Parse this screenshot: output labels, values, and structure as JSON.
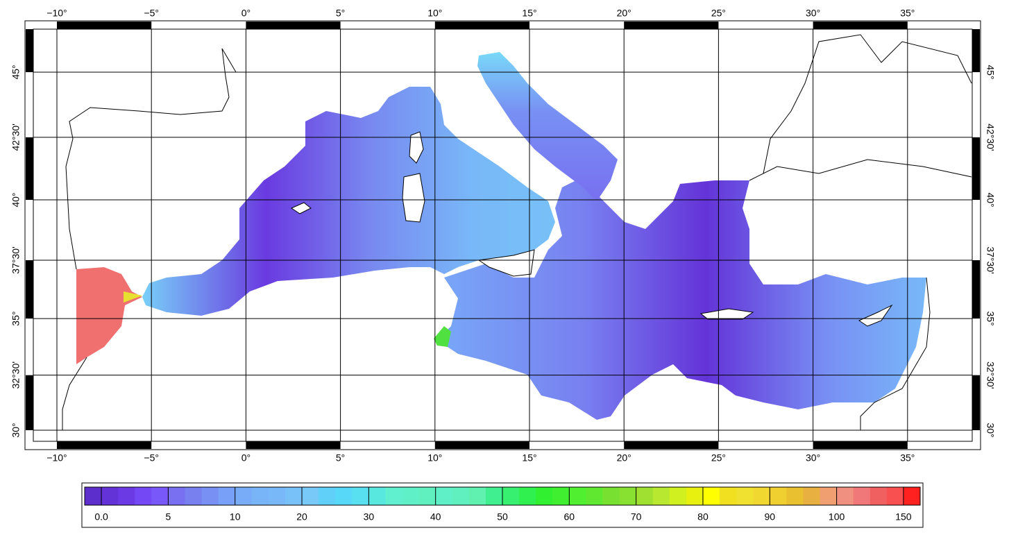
{
  "map": {
    "lon_ticks": [
      {
        "value": -10,
        "label": "−10°"
      },
      {
        "value": -5,
        "label": "−5°"
      },
      {
        "value": 0,
        "label": "0°"
      },
      {
        "value": 5,
        "label": "5°"
      },
      {
        "value": 10,
        "label": "10°"
      },
      {
        "value": 15,
        "label": "15°"
      },
      {
        "value": 20,
        "label": "20°"
      },
      {
        "value": 25,
        "label": "25°"
      },
      {
        "value": 30,
        "label": "30°"
      },
      {
        "value": 35,
        "label": "35°"
      }
    ],
    "lat_ticks": [
      {
        "value": 30,
        "label": "30°"
      },
      {
        "value": 32.5,
        "label": "32°30'"
      },
      {
        "value": 35,
        "label": "35°"
      },
      {
        "value": 37.5,
        "label": "37°30'"
      },
      {
        "value": 40,
        "label": "40°"
      },
      {
        "value": 42.5,
        "label": "42°30'"
      },
      {
        "value": 45,
        "label": "45°"
      }
    ],
    "colorbar": {
      "labels": [
        "0.0",
        "5",
        "10",
        "20",
        "30",
        "40",
        "50",
        "60",
        "70",
        "80",
        "90",
        "100",
        "150"
      ],
      "colors": [
        "#5c2ecc",
        "#6433d8",
        "#6c3ae4",
        "#7448f4",
        "#7858f8",
        "#7870f0",
        "#7880f0",
        "#7890f4",
        "#78a0f8",
        "#78acf8",
        "#78b4f8",
        "#78b8f8",
        "#78c0f8",
        "#78c8f8",
        "#60d0f8",
        "#58d8f8",
        "#58e0f0",
        "#58e8e0",
        "#60f0d0",
        "#60f0c8",
        "#60f0c0",
        "#60f0c8",
        "#60f0c0",
        "#60f0b0",
        "#40f090",
        "#38f070",
        "#30f050",
        "#30f030",
        "#40f030",
        "#50f030",
        "#60e830",
        "#78e030",
        "#88e030",
        "#a0e030",
        "#b8e830",
        "#d0f020",
        "#e8f010",
        "#ffff00",
        "#f0e020",
        "#f0e030",
        "#f0d830",
        "#f0d030",
        "#e8c030",
        "#e8b040",
        "#f0a070",
        "#f09080",
        "#f07878",
        "#f06060",
        "#f85050",
        "#ff2020"
      ]
    }
  }
}
